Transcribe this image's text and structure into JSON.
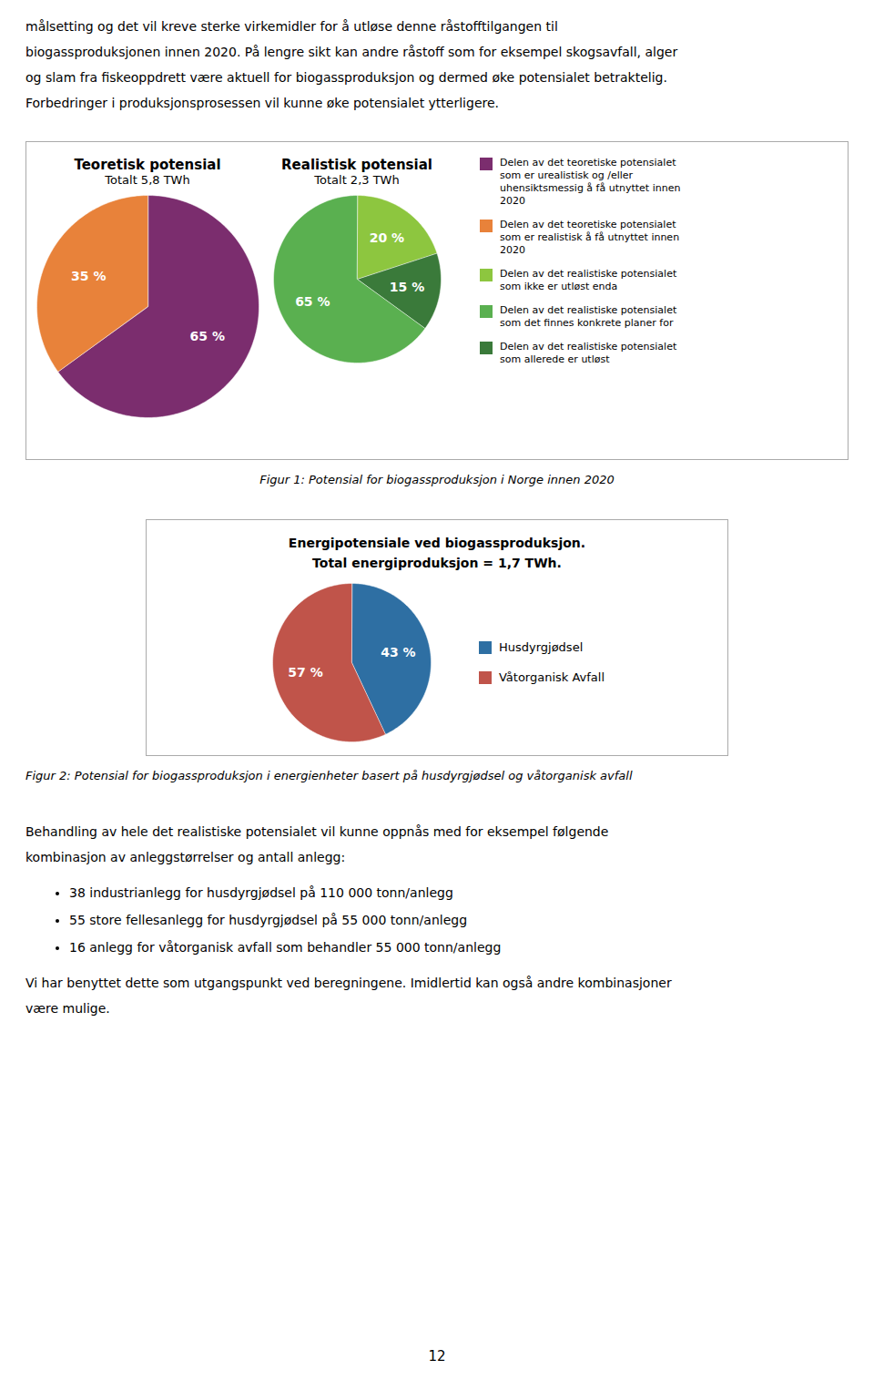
{
  "header_text": [
    "målsetting og det vil kreve sterke virkemidler for å utløse denne råstofftilgangen til",
    "biogassproduksjonen innen 2020. På lengre sikt kan andre råstoff som for eksempel skogsavfall, alger",
    "og slam fra fiskeoppdrett være aktuell for biogassproduksjon og dermed øke potensialet betraktelig.",
    "Forbedringer i produksjonsprosessen vil kunne øke potensialet ytterligere."
  ],
  "chart_data": [
    {
      "type": "pie",
      "title": "Teoretisk potensial",
      "subtitle": "Totalt 5,8 TWh",
      "categories": [
        "Delen av det teoretiske potensialet\nsom er urealistisk og /eller\nuhensiktsmessig å få utnyttet innen\n2020",
        "Delen av det teoretiske potensialet\nsom er realistisk å få utnyttet innen\n2020"
      ],
      "values": [
        65,
        35
      ],
      "value_labels": [
        "65 %",
        "35 %"
      ],
      "colors": [
        "#7b2d6e",
        "#e8823a"
      ],
      "data_labels": true
    },
    {
      "type": "pie",
      "title": "Realistisk potensial",
      "subtitle": "Totalt 2,3 TWh",
      "categories": [
        "Delen av det realistiske potensialet\nsom ikke er utløst enda",
        "Delen av det realistiske potensialet\nsom allerede er utløst",
        "Delen av det realistiske potensialet\nsom det finnes konkrete planer for"
      ],
      "values": [
        20,
        15,
        65
      ],
      "value_labels": [
        "20 %",
        "15 %",
        "65 %"
      ],
      "colors": [
        "#8dc63f",
        "#3a7a3a",
        "#5ab050"
      ],
      "data_labels": true
    },
    {
      "type": "pie",
      "title": "Energipotensiale ved biogassproduksjon.",
      "subtitle": "Total energiproduksjon = 1,7 TWh.",
      "categories": [
        "Husdyrgjødsel",
        "Våtorganisk Avfall"
      ],
      "values": [
        43,
        57
      ],
      "value_labels": [
        "43 %",
        "57 %"
      ],
      "colors": [
        "#2e6fa3",
        "#c0544a"
      ],
      "data_labels": true,
      "legend": "right"
    }
  ],
  "figure_1_legend": [
    {
      "name": "Delen av det teoretiske potensialet\nsom er urealistisk og /eller\nuhensiktsmessig å få utnyttet innen\n2020",
      "color": "#7b2d6e"
    },
    {
      "name": "Delen av det teoretiske potensialet\nsom er realistisk å få utnyttet innen\n2020",
      "color": "#e8823a"
    },
    {
      "name": "Delen av det realistiske potensialet\nsom ikke er utløst enda",
      "color": "#8dc63f"
    },
    {
      "name": "Delen av det realistiske potensialet\nsom det finnes konkrete planer for",
      "color": "#5ab050"
    },
    {
      "name": "Delen av det realistiske potensialet\nsom allerede er utløst",
      "color": "#3a7a3a"
    }
  ],
  "figure_1_caption": "Figur 1: Potensial for biogassproduksjon i Norge innen 2020",
  "figure_2_caption": "Figur 2: Potensial for biogassproduksjon i energienheter basert på husdyrgjødsel og våtorganisk avfall",
  "body_text": [
    "Behandling av hele det realistiske potensialet vil kunne oppnås med for eksempel følgende",
    "kombinasjon av anleggstørrelser og antall anlegg:"
  ],
  "bullet_points": [
    "38 industrianlegg for husdyrgjødsel på 110 000 tonn/anlegg",
    "55 store fellesanlegg for husdyrgjødsel på 55 000 tonn/anlegg",
    "16 anlegg for våtorganisk avfall som behandler 55 000 tonn/anlegg"
  ],
  "body_text_2": [
    "Vi har benyttet dette som utgangspunkt ved beregningene. Imidlertid kan også andre kombinasjoner",
    "være mulige."
  ],
  "page_number": "12"
}
